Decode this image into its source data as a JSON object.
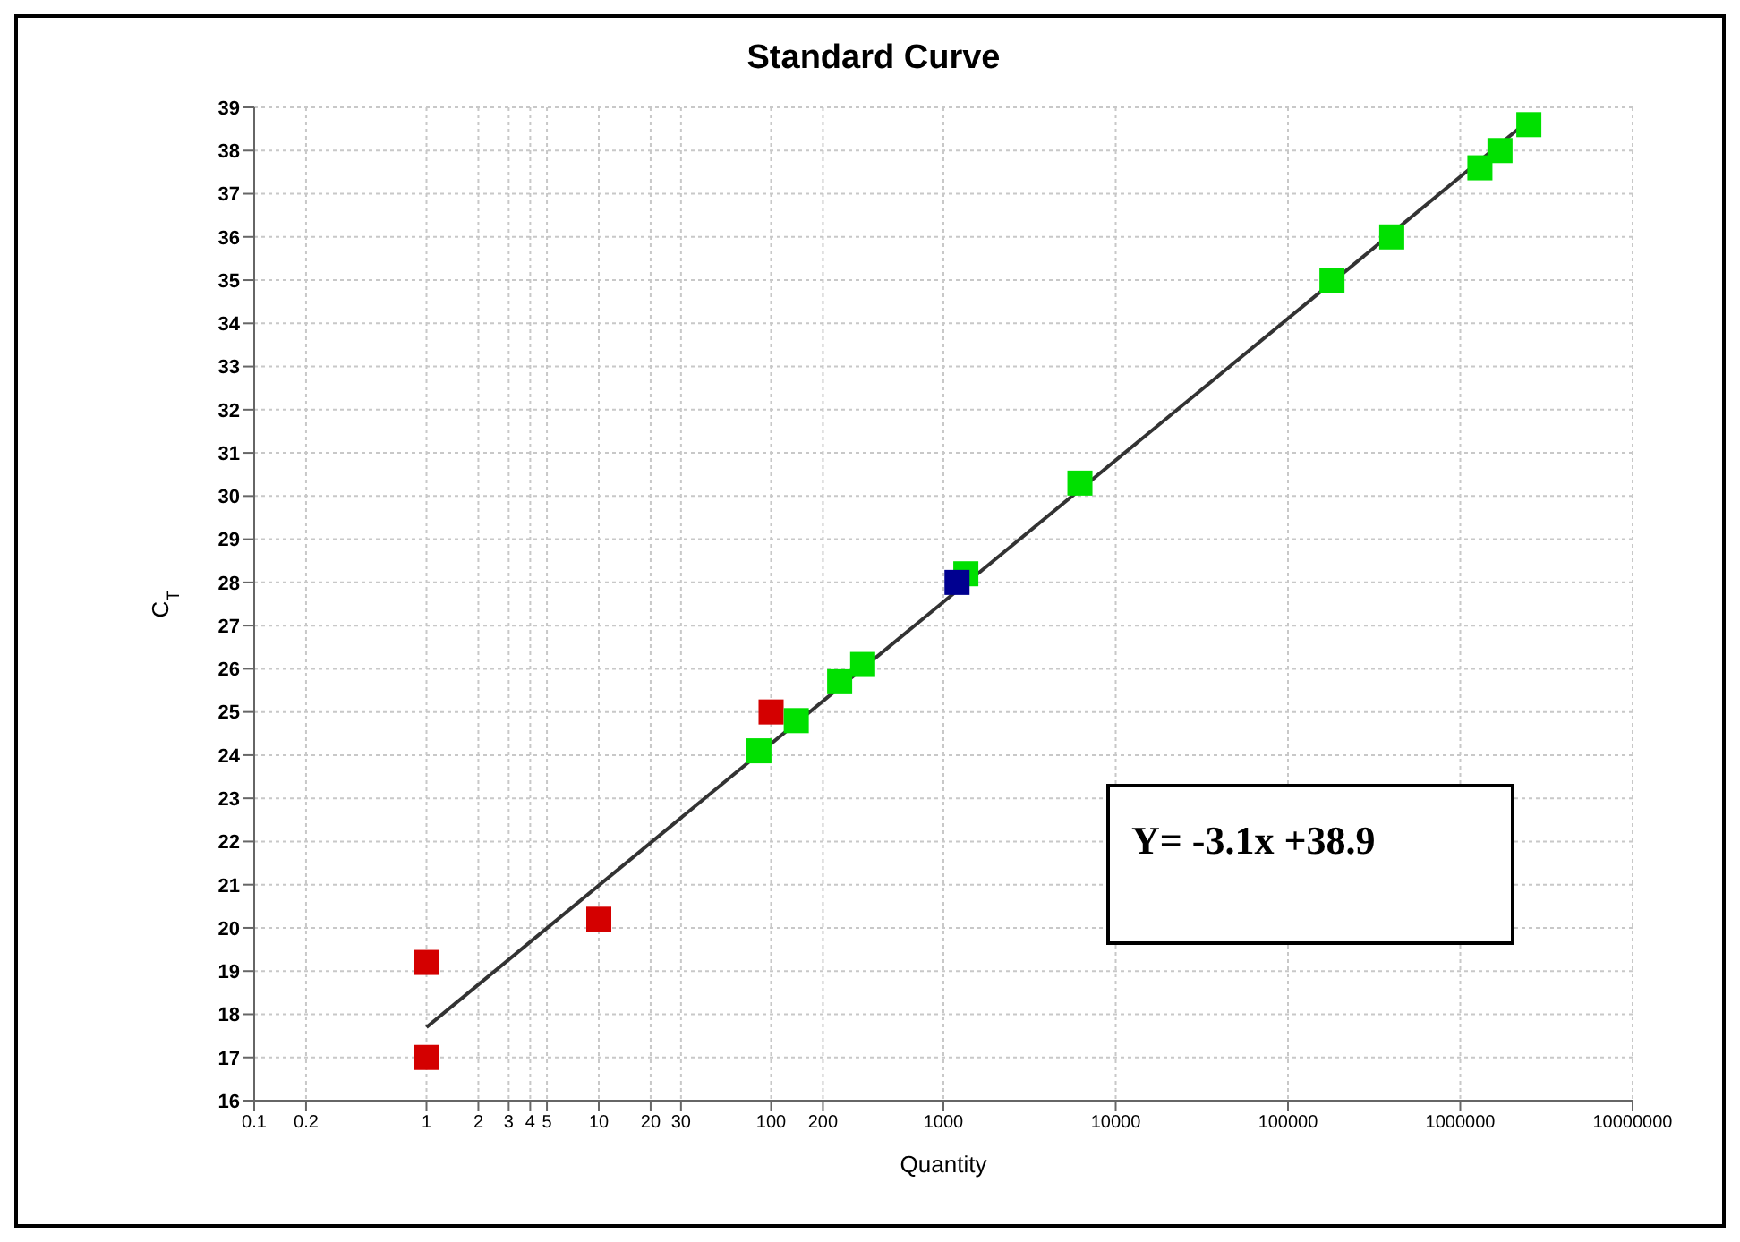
{
  "chart_data": {
    "type": "scatter",
    "title": "Standard Curve",
    "xlabel": "Quantity",
    "ylabel": "C$_{T}$",
    "log": "x",
    "grid": true,
    "marker": "square",
    "xlim": [
      0.1,
      10000000
    ],
    "ylim": [
      16,
      39
    ],
    "xticks": [
      0.1,
      0.2,
      1,
      2,
      3,
      4,
      5,
      10,
      20,
      30,
      100,
      200,
      1000,
      10000,
      100000,
      1000000,
      10000000
    ],
    "yticks": [
      16,
      17,
      18,
      19,
      20,
      21,
      22,
      23,
      24,
      25,
      26,
      27,
      28,
      29,
      30,
      31,
      32,
      33,
      34,
      35,
      36,
      37,
      38,
      39
    ],
    "series": [
      {
        "color": "#d40000",
        "x": [
          1,
          1,
          10,
          100
        ],
        "values": [
          19.2,
          17.0,
          20.2,
          25.0
        ]
      },
      {
        "color": "#00e000",
        "x": [
          85,
          140,
          250,
          340,
          1350,
          6200,
          180000,
          400000,
          1300000,
          1700000,
          2500000
        ],
        "values": [
          24.1,
          24.8,
          25.7,
          26.1,
          28.2,
          30.3,
          35.0,
          36.0,
          37.6,
          38.0,
          38.6
        ]
      },
      {
        "color": "#000090",
        "x": [
          1200
        ],
        "values": [
          28.0
        ]
      },
      {
        "type": "line",
        "marker": "none",
        "color": "#333333",
        "x": [
          1,
          2500000
        ],
        "values": [
          17.7,
          38.7
        ]
      }
    ],
    "annotations": [
      "Y= -3.1x +38.9"
    ]
  }
}
